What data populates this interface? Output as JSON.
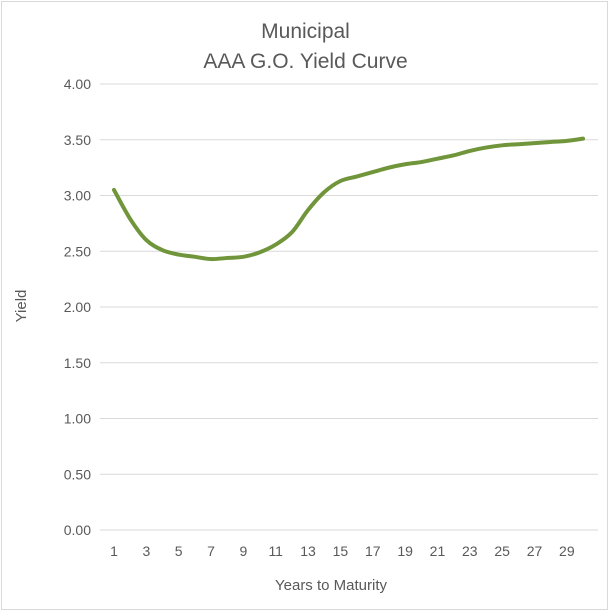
{
  "chart_data": {
    "type": "line",
    "title_lines": [
      "Municipal",
      "AAA G.O. Yield Curve"
    ],
    "xlabel": "Years to Maturity",
    "ylabel": "Yield",
    "ylim": [
      0,
      4
    ],
    "xlim": [
      1,
      30
    ],
    "y_ticks": [
      "0.00",
      "0.50",
      "1.00",
      "1.50",
      "2.00",
      "2.50",
      "3.00",
      "3.50",
      "4.00"
    ],
    "x_ticks": [
      "1",
      "3",
      "5",
      "7",
      "9",
      "11",
      "13",
      "15",
      "17",
      "19",
      "21",
      "23",
      "25",
      "27",
      "29"
    ],
    "grid": "horizontal",
    "legend": "none",
    "line_color": "#70953a",
    "grid_color": "#d9d9d9",
    "series": [
      {
        "x": [
          1,
          2,
          3,
          4,
          5,
          6,
          7,
          8,
          9,
          10,
          11,
          12,
          13,
          14,
          15,
          16,
          17,
          18,
          19,
          20,
          21,
          22,
          23,
          24,
          25,
          26,
          27,
          28,
          29,
          30
        ],
        "values": [
          3.05,
          2.79,
          2.6,
          2.51,
          2.47,
          2.45,
          2.43,
          2.44,
          2.45,
          2.49,
          2.56,
          2.67,
          2.87,
          3.03,
          3.13,
          3.17,
          3.21,
          3.25,
          3.28,
          3.3,
          3.33,
          3.36,
          3.4,
          3.43,
          3.45,
          3.46,
          3.47,
          3.48,
          3.49,
          3.51
        ]
      }
    ]
  }
}
